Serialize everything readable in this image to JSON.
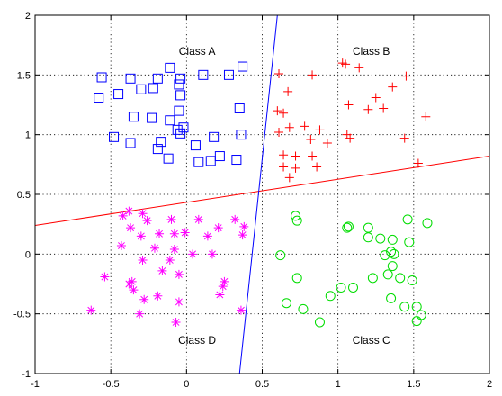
{
  "chart_data": {
    "type": "scatter",
    "title": "",
    "xlabel": "",
    "ylabel": "",
    "xlim": [
      -1,
      2
    ],
    "ylim": [
      -1,
      2
    ],
    "grid": true,
    "xticks": [
      "-1",
      "-0.5",
      "0",
      "0.5",
      "1",
      "1.5",
      "2"
    ],
    "yticks": [
      "-1",
      "-0.5",
      "0",
      "0.5",
      "1",
      "1.5",
      "2"
    ],
    "annotations": [
      {
        "text": "Class A",
        "x": 0.07,
        "y": 1.7
      },
      {
        "text": "Class B",
        "x": 1.22,
        "y": 1.7
      },
      {
        "text": "Class C",
        "x": 1.22,
        "y": -0.72
      },
      {
        "text": "Class D",
        "x": 0.07,
        "y": -0.72
      }
    ],
    "series": [
      {
        "marker": "square",
        "color": "#0000ff",
        "points": [
          [
            -0.56,
            1.48
          ],
          [
            -0.58,
            1.31
          ],
          [
            -0.45,
            1.34
          ],
          [
            -0.37,
            1.47
          ],
          [
            -0.3,
            1.38
          ],
          [
            -0.19,
            1.47
          ],
          [
            -0.11,
            1.56
          ],
          [
            -0.04,
            1.47
          ],
          [
            -0.05,
            1.42
          ],
          [
            -0.04,
            1.33
          ],
          [
            0.11,
            1.5
          ],
          [
            0.28,
            1.5
          ],
          [
            0.37,
            1.57
          ],
          [
            -0.22,
            1.39
          ],
          [
            -0.35,
            1.15
          ],
          [
            -0.23,
            1.14
          ],
          [
            -0.11,
            1.12
          ],
          [
            -0.05,
            1.2
          ],
          [
            -0.02,
            1.06
          ],
          [
            -0.06,
            1.04
          ],
          [
            -0.04,
            1.01
          ],
          [
            -0.48,
            0.98
          ],
          [
            -0.37,
            0.93
          ],
          [
            -0.17,
            0.94
          ],
          [
            -0.19,
            0.88
          ],
          [
            -0.12,
            0.8
          ],
          [
            0.06,
            0.91
          ],
          [
            0.18,
            0.98
          ],
          [
            0.35,
            1.22
          ],
          [
            0.36,
            1.0
          ],
          [
            0.22,
            0.82
          ],
          [
            0.33,
            0.79
          ],
          [
            0.08,
            0.77
          ],
          [
            0.16,
            0.78
          ]
        ]
      },
      {
        "marker": "plus",
        "color": "#ff0000",
        "points": [
          [
            0.61,
            1.51
          ],
          [
            0.67,
            1.36
          ],
          [
            0.6,
            1.2
          ],
          [
            0.64,
            1.18
          ],
          [
            0.68,
            1.06
          ],
          [
            0.61,
            1.02
          ],
          [
            0.83,
            1.5
          ],
          [
            1.03,
            1.6
          ],
          [
            1.05,
            1.59
          ],
          [
            1.14,
            1.56
          ],
          [
            1.25,
            1.31
          ],
          [
            1.36,
            1.4
          ],
          [
            1.45,
            1.49
          ],
          [
            1.58,
            1.15
          ],
          [
            1.2,
            1.21
          ],
          [
            1.3,
            1.22
          ],
          [
            1.07,
            1.25
          ],
          [
            0.78,
            1.07
          ],
          [
            0.88,
            1.04
          ],
          [
            0.82,
            0.96
          ],
          [
            0.93,
            0.93
          ],
          [
            1.06,
            1.0
          ],
          [
            1.08,
            0.97
          ],
          [
            1.44,
            0.97
          ],
          [
            0.64,
            0.83
          ],
          [
            0.72,
            0.82
          ],
          [
            0.64,
            0.73
          ],
          [
            0.72,
            0.72
          ],
          [
            0.68,
            0.64
          ],
          [
            0.83,
            0.82
          ],
          [
            0.86,
            0.73
          ],
          [
            1.53,
            0.76
          ]
        ]
      },
      {
        "marker": "circle",
        "color": "#00dd00",
        "points": [
          [
            0.72,
            0.32
          ],
          [
            0.73,
            0.28
          ],
          [
            1.06,
            0.22
          ],
          [
            1.07,
            0.23
          ],
          [
            1.2,
            0.22
          ],
          [
            1.2,
            0.14
          ],
          [
            1.28,
            0.13
          ],
          [
            1.36,
            0.12
          ],
          [
            1.35,
            0.02
          ],
          [
            1.46,
            0.29
          ],
          [
            1.59,
            0.26
          ],
          [
            1.31,
            -0.01
          ],
          [
            1.37,
            0.0
          ],
          [
            1.47,
            0.1
          ],
          [
            0.62,
            -0.01
          ],
          [
            0.73,
            -0.2
          ],
          [
            1.23,
            -0.2
          ],
          [
            1.33,
            -0.17
          ],
          [
            1.36,
            -0.1
          ],
          [
            1.41,
            -0.2
          ],
          [
            1.49,
            -0.22
          ],
          [
            1.02,
            -0.28
          ],
          [
            1.1,
            -0.28
          ],
          [
            0.95,
            -0.35
          ],
          [
            1.35,
            -0.37
          ],
          [
            0.66,
            -0.41
          ],
          [
            0.77,
            -0.46
          ],
          [
            1.44,
            -0.44
          ],
          [
            1.52,
            -0.44
          ],
          [
            1.55,
            -0.51
          ],
          [
            1.52,
            -0.56
          ],
          [
            0.88,
            -0.57
          ]
        ]
      },
      {
        "marker": "asterisk",
        "color": "#ff00ff",
        "points": [
          [
            -0.38,
            0.36
          ],
          [
            -0.42,
            0.32
          ],
          [
            -0.29,
            0.34
          ],
          [
            -0.26,
            0.28
          ],
          [
            -0.1,
            0.29
          ],
          [
            -0.37,
            0.22
          ],
          [
            -0.3,
            0.15
          ],
          [
            -0.18,
            0.17
          ],
          [
            -0.08,
            0.17
          ],
          [
            0.08,
            0.29
          ],
          [
            0.21,
            0.22
          ],
          [
            0.32,
            0.29
          ],
          [
            0.38,
            0.23
          ],
          [
            0.37,
            0.16
          ],
          [
            -0.01,
            0.18
          ],
          [
            0.14,
            0.15
          ],
          [
            -0.43,
            0.07
          ],
          [
            -0.21,
            0.05
          ],
          [
            -0.08,
            0.04
          ],
          [
            -0.29,
            -0.05
          ],
          [
            -0.11,
            -0.05
          ],
          [
            0.04,
            0.0
          ],
          [
            0.17,
            0.0
          ],
          [
            -0.54,
            -0.19
          ],
          [
            -0.16,
            -0.14
          ],
          [
            -0.05,
            -0.17
          ],
          [
            -0.38,
            -0.25
          ],
          [
            -0.36,
            -0.23
          ],
          [
            -0.35,
            -0.3
          ],
          [
            0.25,
            -0.23
          ],
          [
            0.24,
            -0.27
          ],
          [
            -0.19,
            -0.35
          ],
          [
            -0.28,
            -0.38
          ],
          [
            -0.05,
            -0.4
          ],
          [
            0.22,
            -0.34
          ],
          [
            -0.63,
            -0.47
          ],
          [
            -0.31,
            -0.5
          ],
          [
            0.36,
            -0.47
          ],
          [
            -0.07,
            -0.57
          ]
        ]
      }
    ],
    "boundaries": [
      {
        "color": "#ff0000",
        "from": [
          -1,
          0.24
        ],
        "to": [
          2,
          0.82
        ]
      },
      {
        "color": "#0000ff",
        "from": [
          0.35,
          -1
        ],
        "to": [
          0.6,
          2
        ]
      }
    ]
  }
}
